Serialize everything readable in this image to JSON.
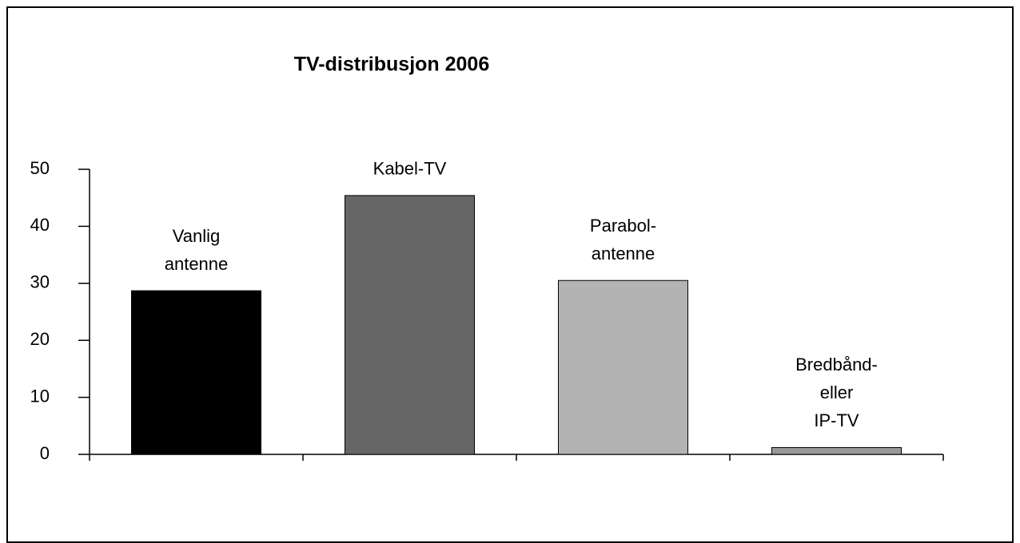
{
  "chart_data": {
    "type": "bar",
    "title": "TV-distribusjon 2006",
    "categories": [
      [
        "Vanlig",
        "antenne"
      ],
      [
        "Kabel-TV"
      ],
      [
        "Parabol-",
        "antenne"
      ],
      [
        "Bredbånd-",
        "eller",
        "IP-TV"
      ]
    ],
    "values": [
      28.7,
      45.4,
      30.5,
      1.2
    ],
    "colors": [
      "#000000",
      "#666666",
      "#b3b3b3",
      "#999999"
    ],
    "ylim": [
      0,
      50
    ],
    "yticks": [
      0,
      10,
      20,
      30,
      40,
      50
    ],
    "grid": false
  }
}
